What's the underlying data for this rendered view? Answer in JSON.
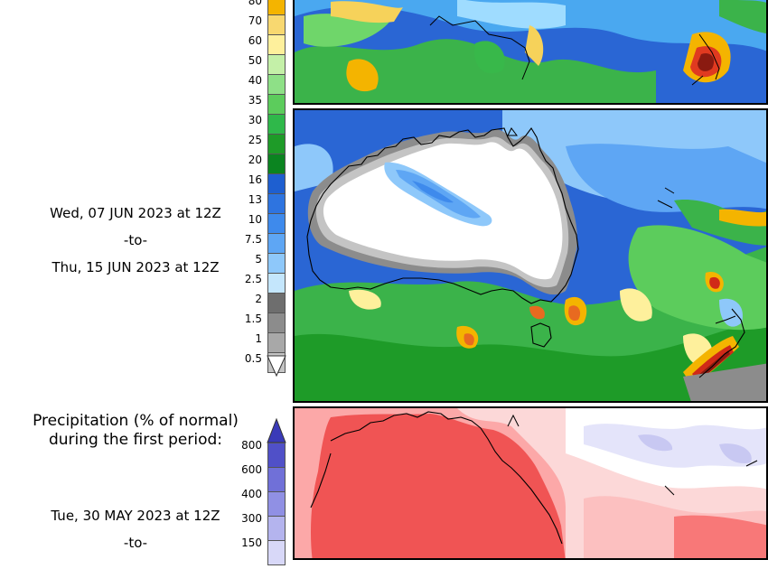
{
  "forecast_accum": {
    "colorbar_labels": [
      "80",
      "70",
      "60",
      "50",
      "40",
      "35",
      "30",
      "25",
      "20",
      "16",
      "13",
      "10",
      "7.5",
      "5",
      "2.5",
      "2",
      "1.5",
      "1",
      "0.5"
    ],
    "colorbar_colors": [
      "#f4b400",
      "#f8d870",
      "#fef09c",
      "#c4f0a8",
      "#8ee087",
      "#5ccc5c",
      "#2fb84a",
      "#1e9b28",
      "#0b8420",
      "#1e5fd0",
      "#2e74e0",
      "#3e8aec",
      "#5ea6f4",
      "#8ec8fa",
      "#c4e6fc",
      "#6e6e6e",
      "#8c8c8c",
      "#a8a8a8",
      "#c4c4c4"
    ],
    "period_start": "Wed, 07 JUN 2023 at 12Z",
    "period_sep": "-to-",
    "period_end": "Thu, 15 JUN 2023 at 12Z"
  },
  "percent_normal": {
    "title_line1": "Precipitation (% of normal)",
    "title_line2": "during the first period:",
    "colorbar_labels": [
      "800",
      "600",
      "400",
      "300",
      "150"
    ],
    "colorbar_colors": [
      "#5050c8",
      "#7070d8",
      "#9090e4",
      "#b4b4ee",
      "#d8d8f8"
    ],
    "period_start": "Tue, 30 MAY 2023 at 12Z",
    "period_sep": "-to-"
  }
}
